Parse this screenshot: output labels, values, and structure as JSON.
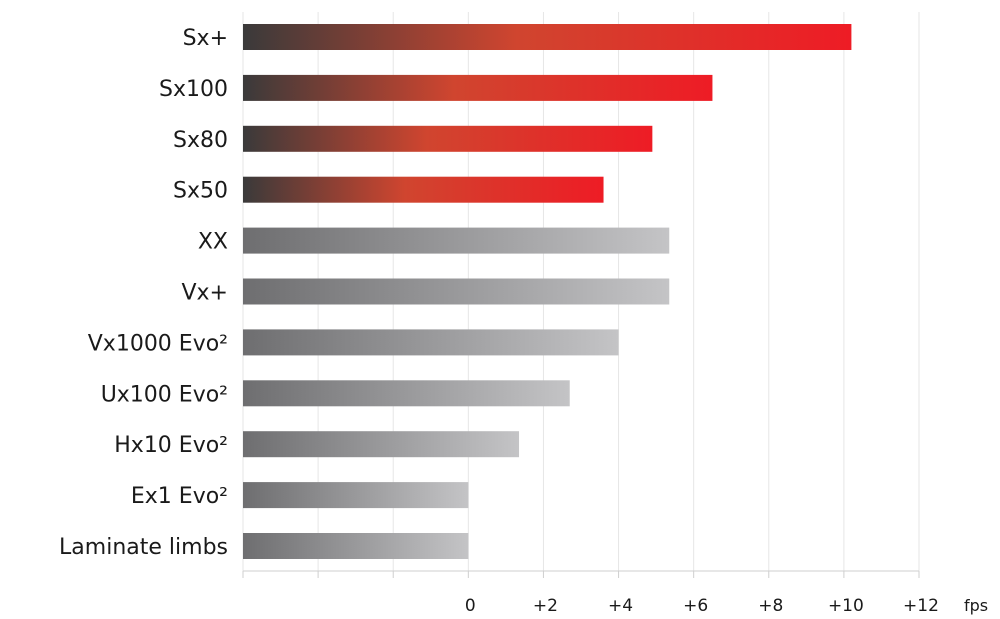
{
  "chart_data": {
    "type": "bar",
    "orientation": "horizontal",
    "categories": [
      "Sx+",
      "Sx100",
      "Sx80",
      "Sx50",
      "XX",
      "Vx+",
      "Vx1000 Evo²",
      "Ux100 Evo²",
      "Hx10 Evo²",
      "Ex1 Evo²",
      "Laminate limbs"
    ],
    "values": [
      10.2,
      6.5,
      4.9,
      3.6,
      5.35,
      5.35,
      4.0,
      2.7,
      1.35,
      0.0,
      0.0
    ],
    "series_style": [
      "red",
      "red",
      "red",
      "red",
      "grey",
      "grey",
      "grey",
      "grey",
      "grey",
      "grey",
      "grey"
    ],
    "xlim": [
      -6,
      12
    ],
    "x_ticks": [
      0,
      2,
      4,
      6,
      8,
      10,
      12
    ],
    "x_tick_labels": [
      "0",
      "+2",
      "+4",
      "+6",
      "+8",
      "+10",
      "+12"
    ],
    "xlabel": "fps",
    "grid": true,
    "colors": {
      "red_start": "#3a3a3a",
      "red_end": "#ee1c25",
      "grey_start": "#6e6e70",
      "grey_end": "#c4c4c6"
    }
  }
}
